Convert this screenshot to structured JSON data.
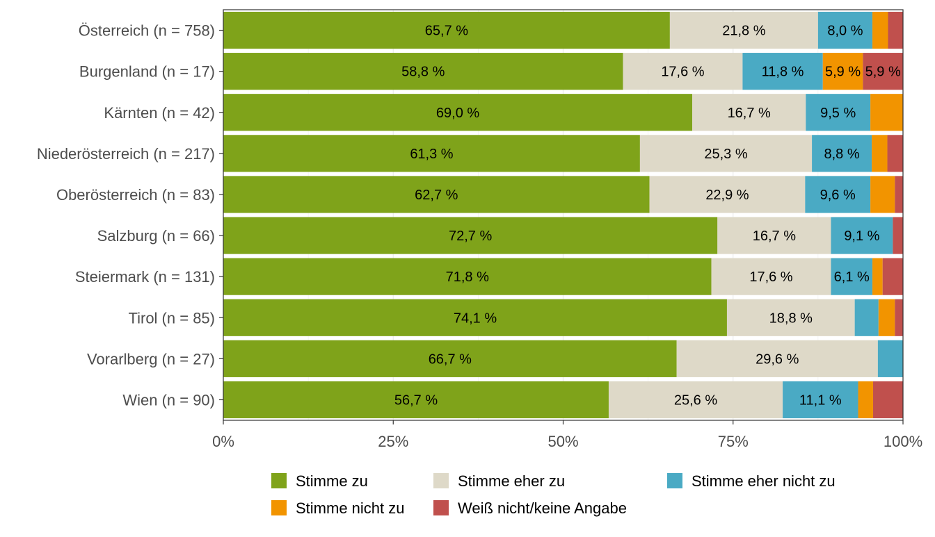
{
  "chart_data": {
    "type": "bar",
    "orientation": "horizontal",
    "stacked": true,
    "categories": [
      "Österreich (n = 758)",
      "Burgenland (n = 17)",
      "Kärnten (n = 42)",
      "Niederösterreich (n = 217)",
      "Oberösterreich (n = 83)",
      "Salzburg (n = 66)",
      "Steiermark (n = 131)",
      "Tirol (n = 85)",
      "Vorarlberg (n = 27)",
      "Wien (n = 90)"
    ],
    "series": [
      {
        "name": "Stimme zu",
        "color": "#7fa31a",
        "values": [
          65.7,
          58.8,
          69.0,
          61.3,
          62.7,
          72.7,
          71.8,
          74.1,
          66.7,
          56.7
        ],
        "labels": [
          "65,7 %",
          "58,8 %",
          "69,0 %",
          "61,3 %",
          "62,7 %",
          "72,7 %",
          "71,8 %",
          "74,1 %",
          "66,7 %",
          "56,7 %"
        ]
      },
      {
        "name": "Stimme eher zu",
        "color": "#ded9c8",
        "values": [
          21.8,
          17.6,
          16.7,
          25.3,
          22.9,
          16.7,
          17.6,
          18.8,
          29.6,
          25.6
        ],
        "labels": [
          "21,8 %",
          "17,6 %",
          "16,7 %",
          "25,3 %",
          "22,9 %",
          "16,7 %",
          "17,6 %",
          "18,8 %",
          "29,6 %",
          "25,6 %"
        ]
      },
      {
        "name": "Stimme eher nicht zu",
        "color": "#4aaac4",
        "values": [
          8.0,
          11.8,
          9.5,
          8.8,
          9.6,
          9.1,
          6.1,
          3.5,
          3.7,
          11.1
        ],
        "labels": [
          "8,0 %",
          "11,8 %",
          "9,5 %",
          "8,8 %",
          "9,6 %",
          "9,1 %",
          "6,1 %",
          "",
          "",
          "11,1 %"
        ]
      },
      {
        "name": "Stimme nicht zu",
        "color": "#f29400",
        "values": [
          2.3,
          5.9,
          4.8,
          2.3,
          3.6,
          0.0,
          1.5,
          2.4,
          0.0,
          2.2
        ],
        "labels": [
          "",
          "5,9 %",
          "",
          "",
          "",
          "",
          "",
          "",
          "",
          ""
        ]
      },
      {
        "name": "Weiß nicht/keine Angabe",
        "color": "#c0504d",
        "values": [
          2.2,
          5.9,
          0.0,
          2.3,
          1.2,
          1.5,
          3.0,
          1.2,
          0.0,
          4.4
        ],
        "labels": [
          "",
          "5,9 %",
          "",
          "",
          "",
          "",
          "",
          "",
          "",
          ""
        ]
      }
    ],
    "x_ticks": [
      "0%",
      "25%",
      "50%",
      "75%",
      "100%"
    ],
    "xlim": [
      0,
      100
    ],
    "grid": true,
    "legend_position": "bottom",
    "title": "",
    "xlabel": "",
    "ylabel": ""
  }
}
